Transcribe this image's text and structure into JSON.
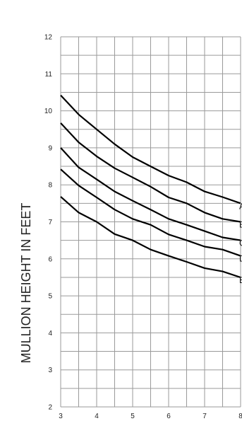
{
  "chart_data": {
    "type": "line",
    "title": "",
    "xlabel": "",
    "ylabel": "MULLION HEIGHT IN FEET",
    "xlim": [
      3,
      8
    ],
    "ylim": [
      2,
      12
    ],
    "x_ticks": [
      3,
      4,
      5,
      6,
      7,
      8
    ],
    "y_ticks": [
      2,
      3,
      4,
      5,
      6,
      7,
      8,
      9,
      10,
      11,
      12
    ],
    "grid": true,
    "grid_step": 0.5,
    "series": [
      {
        "x": [
          3,
          3.5,
          4,
          4.5,
          5,
          5.5,
          6,
          6.5,
          7,
          7.5,
          8
        ],
        "y": [
          10.42,
          9.9,
          9.5,
          9.1,
          8.75,
          8.5,
          8.25,
          8.07,
          7.82,
          7.67,
          7.5
        ]
      },
      {
        "x": [
          3,
          3.5,
          4,
          4.5,
          5,
          5.5,
          6,
          6.5,
          7,
          7.5,
          8
        ],
        "y": [
          9.67,
          9.15,
          8.77,
          8.45,
          8.2,
          7.95,
          7.66,
          7.5,
          7.25,
          7.08,
          7.0
        ]
      },
      {
        "x": [
          3,
          3.5,
          4,
          4.5,
          5,
          5.5,
          6,
          6.5,
          7,
          7.5,
          8
        ],
        "y": [
          9.0,
          8.47,
          8.15,
          7.82,
          7.57,
          7.33,
          7.08,
          6.92,
          6.75,
          6.58,
          6.5
        ]
      },
      {
        "x": [
          3,
          3.5,
          4,
          4.5,
          5,
          5.5,
          6,
          6.5,
          7,
          7.5,
          8
        ],
        "y": [
          8.42,
          7.98,
          7.66,
          7.33,
          7.08,
          6.92,
          6.66,
          6.5,
          6.33,
          6.25,
          6.08
        ]
      },
      {
        "x": [
          3,
          3.5,
          4,
          4.5,
          5,
          5.5,
          6,
          6.5,
          7,
          7.5,
          8
        ],
        "y": [
          7.68,
          7.25,
          7.0,
          6.67,
          6.5,
          6.25,
          6.08,
          5.92,
          5.75,
          5.66,
          5.5
        ]
      }
    ],
    "curve_labels": [
      "A",
      "B",
      "C",
      "D",
      "E"
    ]
  }
}
